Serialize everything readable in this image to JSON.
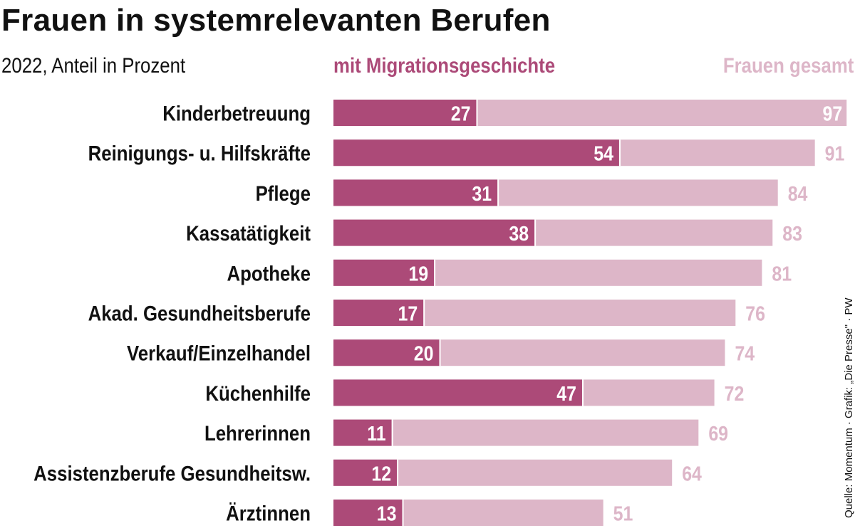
{
  "chart_data": {
    "type": "bar",
    "orientation": "horizontal",
    "title": "Frauen in systemrelevanten Berufen",
    "subtitle": "2022, Anteil in Prozent",
    "categories": [
      "Kinderbetreuung",
      "Reinigungs- u. Hilfskräfte",
      "Pflege",
      "Kassatätigkeit",
      "Apotheke",
      "Akad. Gesundheitsberufe",
      "Verkauf/Einzelhandel",
      "Küchenhilfe",
      "Lehrerinnen",
      "Assistenzberufe Gesundheitsw.",
      "Ärztinnen"
    ],
    "series": [
      {
        "name": "Frauen gesamt",
        "values": [
          97,
          91,
          84,
          83,
          81,
          76,
          74,
          72,
          69,
          64,
          51
        ]
      },
      {
        "name": "mit Migrationsgeschichte",
        "values": [
          27,
          54,
          31,
          38,
          19,
          17,
          20,
          47,
          11,
          12,
          13
        ]
      }
    ],
    "xlim": [
      0,
      100
    ],
    "grid": false,
    "legend_placement": "top",
    "source": "Quelle: Momentum · Grafik: „Die Presse\" · PW"
  },
  "colors": {
    "migration": "#AC4A78",
    "total": "#DDB6C8",
    "label_inside": "#FFFFFF",
    "label_outside": "#DDB6C8",
    "text": "#111111"
  }
}
